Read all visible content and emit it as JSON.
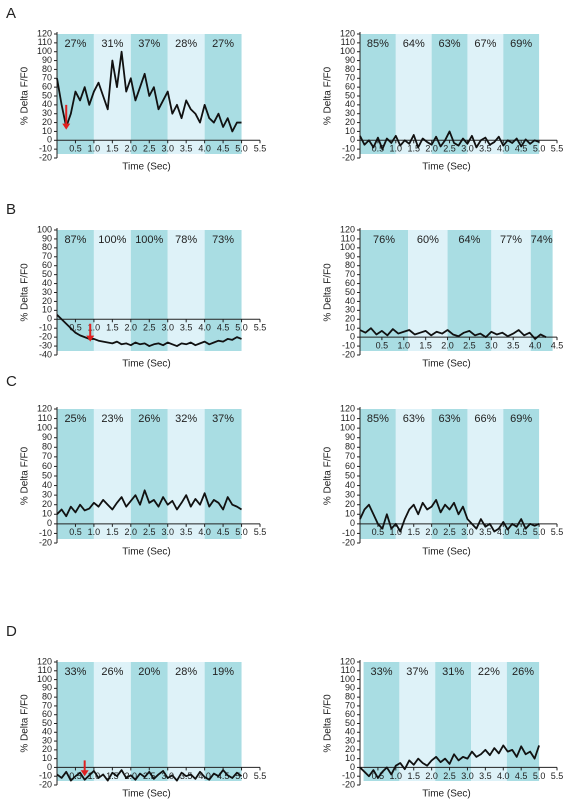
{
  "panels": [
    "A",
    "B",
    "C",
    "D"
  ],
  "chart_data": [
    {
      "type": "line",
      "xlabel": "Time (Sec)",
      "ylabel": "% Delta F/F0",
      "color": "#111111",
      "band_colors": [
        "#a9dde3",
        "#def2f8"
      ],
      "band_edges": [
        0,
        1,
        2,
        3,
        4,
        5
      ],
      "band_labels": [
        "27%",
        "31%",
        "37%",
        "28%",
        "27%"
      ],
      "xlim": [
        0,
        5.5
      ],
      "ylim": [
        -20,
        120
      ],
      "xticks": [
        0.5,
        {
          "value": 1,
          "label": "1.0"
        },
        1.5,
        {
          "value": 2,
          "label": "2.0"
        },
        2.5,
        {
          "value": 3,
          "label": "3.0"
        },
        3.5,
        {
          "value": 4,
          "label": "4.0"
        },
        4.5,
        {
          "value": 5,
          "label": "5.0"
        },
        5.5
      ],
      "yticks": [
        -20,
        -10,
        0,
        10,
        20,
        30,
        40,
        50,
        60,
        70,
        80,
        90,
        100,
        110,
        120
      ],
      "arrow": {
        "x": 0.25,
        "from": 40,
        "to": 12,
        "color": "#e02020"
      },
      "x": [
        0,
        0.125,
        0.25,
        0.375,
        0.5,
        0.625,
        0.75,
        0.875,
        1,
        1.125,
        1.25,
        1.375,
        1.5,
        1.625,
        1.75,
        1.875,
        2,
        2.125,
        2.25,
        2.375,
        2.5,
        2.625,
        2.75,
        2.875,
        3,
        3.125,
        3.25,
        3.375,
        3.5,
        3.625,
        3.75,
        3.875,
        4,
        4.125,
        4.25,
        4.375,
        4.5,
        4.625,
        4.75,
        4.875,
        5
      ],
      "values": [
        70,
        40,
        15,
        30,
        55,
        45,
        60,
        40,
        55,
        65,
        50,
        35,
        90,
        60,
        100,
        55,
        70,
        45,
        60,
        75,
        50,
        60,
        35,
        45,
        55,
        30,
        40,
        25,
        45,
        35,
        30,
        20,
        40,
        25,
        20,
        30,
        15,
        25,
        10,
        20,
        20
      ]
    },
    {
      "type": "line",
      "xlabel": "Time (Sec)",
      "ylabel": "% Delta F/F0",
      "color": "#111111",
      "band_colors": [
        "#a9dde3",
        "#def2f8"
      ],
      "band_edges": [
        0,
        1,
        2,
        3,
        4,
        5
      ],
      "band_labels": [
        "85%",
        "64%",
        "63%",
        "67%",
        "69%"
      ],
      "xlim": [
        0,
        5.5
      ],
      "ylim": [
        -20,
        120
      ],
      "xticks": [
        0.5,
        {
          "value": 1,
          "label": "1.0"
        },
        1.5,
        {
          "value": 2,
          "label": "2.0"
        },
        2.5,
        {
          "value": 3,
          "label": "3.0"
        },
        3.5,
        {
          "value": 4,
          "label": "4.0"
        },
        4.5,
        {
          "value": 5,
          "label": "5.0"
        },
        5.5
      ],
      "yticks": [
        -20,
        -10,
        0,
        10,
        20,
        30,
        40,
        50,
        60,
        70,
        80,
        90,
        100,
        110,
        120
      ],
      "x": [
        0,
        0.125,
        0.25,
        0.375,
        0.5,
        0.625,
        0.75,
        0.875,
        1,
        1.125,
        1.25,
        1.375,
        1.5,
        1.625,
        1.75,
        1.875,
        2,
        2.125,
        2.25,
        2.375,
        2.5,
        2.625,
        2.75,
        2.875,
        3,
        3.125,
        3.25,
        3.375,
        3.5,
        3.625,
        3.75,
        3.875,
        4,
        4.125,
        4.25,
        4.375,
        4.5,
        4.625,
        4.75,
        4.875,
        5
      ],
      "values": [
        5,
        -5,
        0,
        -8,
        3,
        -10,
        2,
        -3,
        5,
        -6,
        0,
        -4,
        6,
        -8,
        2,
        -2,
        -5,
        4,
        -7,
        0,
        10,
        -3,
        -6,
        2,
        -4,
        5,
        -8,
        0,
        3,
        -5,
        -2,
        4,
        -6,
        0,
        -3,
        2,
        -7,
        1,
        -4,
        0,
        -2
      ]
    },
    {
      "type": "line",
      "xlabel": "Time (Sec)",
      "ylabel": "% Delta F/F0",
      "color": "#111111",
      "band_colors": [
        "#a9dde3",
        "#def2f8"
      ],
      "band_edges": [
        0,
        1,
        2,
        3,
        4,
        5
      ],
      "band_labels": [
        "87%",
        "100%",
        "100%",
        "78%",
        "73%"
      ],
      "xlim": [
        0,
        5.5
      ],
      "ylim": [
        -40,
        100
      ],
      "xticks": [
        0.5,
        {
          "value": 1,
          "label": "1.0"
        },
        1.5,
        {
          "value": 2,
          "label": "2.0"
        },
        2.5,
        {
          "value": 3,
          "label": "3.0"
        },
        3.5,
        {
          "value": 4,
          "label": "4.0"
        },
        4.5,
        {
          "value": 5,
          "label": "5.0"
        },
        5.5
      ],
      "yticks": [
        -40,
        -30,
        -20,
        -10,
        0,
        10,
        20,
        30,
        40,
        50,
        60,
        70,
        80,
        90,
        100
      ],
      "arrow": {
        "x": 0.9,
        "from": -5,
        "to": -25,
        "color": "#e02020"
      },
      "x": [
        0,
        0.125,
        0.25,
        0.375,
        0.5,
        0.625,
        0.75,
        0.875,
        1,
        1.125,
        1.25,
        1.375,
        1.5,
        1.625,
        1.75,
        1.875,
        2,
        2.125,
        2.25,
        2.375,
        2.5,
        2.625,
        2.75,
        2.875,
        3,
        3.125,
        3.25,
        3.375,
        3.5,
        3.625,
        3.75,
        3.875,
        4,
        4.125,
        4.25,
        4.375,
        4.5,
        4.625,
        4.75,
        4.875,
        5
      ],
      "values": [
        5,
        0,
        -5,
        -10,
        -15,
        -18,
        -20,
        -22,
        -22,
        -24,
        -25,
        -26,
        -27,
        -25,
        -28,
        -27,
        -29,
        -26,
        -28,
        -27,
        -30,
        -28,
        -27,
        -29,
        -26,
        -28,
        -30,
        -27,
        -28,
        -26,
        -29,
        -27,
        -25,
        -28,
        -26,
        -24,
        -25,
        -22,
        -23,
        -20,
        -22
      ]
    },
    {
      "type": "line",
      "xlabel": "Time (Sec)",
      "ylabel": "% Delta F/F0",
      "color": "#111111",
      "band_colors": [
        "#a9dde3",
        "#def2f8"
      ],
      "band_edges": [
        0,
        1.1,
        2,
        3,
        3.9,
        4.4
      ],
      "band_labels": [
        "76%",
        "60%",
        "64%",
        "77%",
        "74%"
      ],
      "xlim": [
        0,
        4.5
      ],
      "ylim": [
        -20,
        120
      ],
      "xticks": [
        0.5,
        {
          "value": 1,
          "label": "1.0"
        },
        1.5,
        {
          "value": 2,
          "label": "2.0"
        },
        2.5,
        {
          "value": 3,
          "label": "3.0"
        },
        3.5,
        {
          "value": 4,
          "label": "4.0"
        },
        4.5
      ],
      "yticks": [
        -20,
        -10,
        0,
        10,
        20,
        30,
        40,
        50,
        60,
        70,
        80,
        90,
        100,
        110,
        120
      ],
      "x": [
        0,
        0.125,
        0.25,
        0.375,
        0.5,
        0.625,
        0.75,
        0.875,
        1,
        1.125,
        1.25,
        1.375,
        1.5,
        1.625,
        1.75,
        1.875,
        2,
        2.125,
        2.25,
        2.375,
        2.5,
        2.625,
        2.75,
        2.875,
        3,
        3.125,
        3.25,
        3.375,
        3.5,
        3.625,
        3.75,
        3.875,
        4,
        4.125,
        4.25
      ],
      "values": [
        8,
        5,
        10,
        3,
        7,
        2,
        9,
        4,
        6,
        8,
        3,
        5,
        7,
        2,
        6,
        4,
        8,
        3,
        1,
        5,
        7,
        2,
        4,
        0,
        6,
        3,
        5,
        1,
        4,
        8,
        2,
        5,
        -2,
        3,
        0
      ]
    },
    {
      "type": "line",
      "xlabel": "Time (Sec)",
      "ylabel": "% Delta F/F0",
      "color": "#111111",
      "band_colors": [
        "#a9dde3",
        "#def2f8"
      ],
      "band_edges": [
        0,
        1,
        2,
        3,
        4,
        5
      ],
      "band_labels": [
        "25%",
        "23%",
        "26%",
        "32%",
        "37%"
      ],
      "xlim": [
        0,
        5.5
      ],
      "ylim": [
        -20,
        120
      ],
      "xticks": [
        0.5,
        {
          "value": 1,
          "label": "1.0"
        },
        1.5,
        {
          "value": 2,
          "label": "2.0"
        },
        2.5,
        {
          "value": 3,
          "label": "3.0"
        },
        3.5,
        {
          "value": 4,
          "label": "4.0"
        },
        4.5,
        {
          "value": 5,
          "label": "5.0"
        },
        5.5
      ],
      "yticks": [
        -20,
        -10,
        0,
        10,
        20,
        30,
        40,
        50,
        60,
        70,
        80,
        90,
        100,
        110,
        120
      ],
      "x": [
        0,
        0.125,
        0.25,
        0.375,
        0.5,
        0.625,
        0.75,
        0.875,
        1,
        1.125,
        1.25,
        1.375,
        1.5,
        1.625,
        1.75,
        1.875,
        2,
        2.125,
        2.25,
        2.375,
        2.5,
        2.625,
        2.75,
        2.875,
        3,
        3.125,
        3.25,
        3.375,
        3.5,
        3.625,
        3.75,
        3.875,
        4,
        4.125,
        4.25,
        4.375,
        4.5,
        4.625,
        4.75,
        4.875,
        5
      ],
      "values": [
        10,
        15,
        8,
        18,
        12,
        20,
        14,
        16,
        22,
        18,
        25,
        20,
        15,
        22,
        28,
        18,
        24,
        30,
        20,
        35,
        22,
        25,
        18,
        28,
        20,
        24,
        15,
        22,
        30,
        18,
        26,
        20,
        32,
        18,
        25,
        22,
        15,
        28,
        20,
        18,
        15
      ]
    },
    {
      "type": "line",
      "xlabel": "Time (Sec)",
      "ylabel": "% Delta F/F0",
      "color": "#111111",
      "band_colors": [
        "#a9dde3",
        "#def2f8"
      ],
      "band_edges": [
        0,
        1,
        2,
        3,
        4,
        5
      ],
      "band_labels": [
        "85%",
        "63%",
        "63%",
        "66%",
        "69%"
      ],
      "xlim": [
        0,
        5.5
      ],
      "ylim": [
        -20,
        120
      ],
      "xticks": [
        0.5,
        {
          "value": 1,
          "label": "1.0"
        },
        1.5,
        {
          "value": 2,
          "label": "2.0"
        },
        2.5,
        {
          "value": 3,
          "label": "3.0"
        },
        3.5,
        {
          "value": 4,
          "label": "4.0"
        },
        4.5,
        {
          "value": 5,
          "label": "5.0"
        },
        5.5
      ],
      "yticks": [
        -20,
        -10,
        0,
        10,
        20,
        30,
        40,
        50,
        60,
        70,
        80,
        90,
        100,
        110,
        120
      ],
      "x": [
        0,
        0.125,
        0.25,
        0.375,
        0.5,
        0.625,
        0.75,
        0.875,
        1,
        1.125,
        1.25,
        1.375,
        1.5,
        1.625,
        1.75,
        1.875,
        2,
        2.125,
        2.25,
        2.375,
        2.5,
        2.625,
        2.75,
        2.875,
        3,
        3.125,
        3.25,
        3.375,
        3.5,
        3.625,
        3.75,
        3.875,
        4,
        4.125,
        4.25,
        4.375,
        4.5,
        4.625,
        4.75,
        4.875,
        5
      ],
      "values": [
        5,
        15,
        20,
        10,
        0,
        -5,
        10,
        -5,
        0,
        -8,
        5,
        15,
        20,
        10,
        22,
        15,
        18,
        25,
        12,
        20,
        15,
        22,
        10,
        18,
        5,
        0,
        -5,
        5,
        -3,
        0,
        -8,
        -5,
        2,
        -6,
        0,
        -3,
        5,
        -5,
        0,
        -2,
        0
      ]
    },
    {
      "type": "line",
      "xlabel": "Time (Sec)",
      "ylabel": "% Delta F/F0",
      "color": "#111111",
      "band_colors": [
        "#a9dde3",
        "#def2f8"
      ],
      "band_edges": [
        0,
        1,
        2,
        3,
        4,
        5
      ],
      "band_labels": [
        "33%",
        "26%",
        "20%",
        "28%",
        "19%"
      ],
      "xlim": [
        0,
        5.5
      ],
      "ylim": [
        -20,
        120
      ],
      "xticks": [
        0.5,
        {
          "value": 1,
          "label": "1.0"
        },
        1.5,
        {
          "value": 2,
          "label": "2.0"
        },
        2.5,
        {
          "value": 3,
          "label": "3.0"
        },
        3.5,
        {
          "value": 4,
          "label": "4.0"
        },
        4.5,
        {
          "value": 5,
          "label": "5.0"
        },
        5.5
      ],
      "yticks": [
        -20,
        -10,
        0,
        10,
        20,
        30,
        40,
        50,
        60,
        70,
        80,
        90,
        100,
        110,
        120
      ],
      "arrow": {
        "x": 0.75,
        "from": 8,
        "to": -10,
        "color": "#e02020"
      },
      "x": [
        0,
        0.125,
        0.25,
        0.375,
        0.5,
        0.625,
        0.75,
        0.875,
        1,
        1.125,
        1.25,
        1.375,
        1.5,
        1.625,
        1.75,
        1.875,
        2,
        2.125,
        2.25,
        2.375,
        2.5,
        2.625,
        2.75,
        2.875,
        3,
        3.125,
        3.25,
        3.375,
        3.5,
        3.625,
        3.75,
        3.875,
        4,
        4.125,
        4.25,
        4.375,
        4.5,
        4.625,
        4.75,
        4.875,
        5
      ],
      "values": [
        -8,
        -12,
        -5,
        -15,
        -10,
        -6,
        -14,
        -9,
        -4,
        -12,
        -8,
        -15,
        -6,
        -10,
        -3,
        -12,
        -9,
        -14,
        -7,
        -11,
        -5,
        -13,
        -8,
        -4,
        -12,
        -9,
        -15,
        -6,
        -10,
        -8,
        -13,
        -5,
        -11,
        -14,
        -7,
        -10,
        -3,
        -9,
        -12,
        -6,
        -10
      ]
    },
    {
      "type": "line",
      "xlabel": "Time (Sec)",
      "ylabel": "% Delta F/F0",
      "color": "#111111",
      "band_colors": [
        "#a9dde3",
        "#def2f8"
      ],
      "band_edges": [
        0.1,
        1.1,
        2.1,
        3.1,
        4.1,
        5
      ],
      "band_labels": [
        "33%",
        "37%",
        "31%",
        "22%",
        "26%"
      ],
      "xlim": [
        0,
        5.5
      ],
      "ylim": [
        -20,
        120
      ],
      "xticks": [
        0.5,
        {
          "value": 1,
          "label": "1.0"
        },
        1.5,
        {
          "value": 2,
          "label": "2.0"
        },
        2.5,
        {
          "value": 3,
          "label": "3.0"
        },
        3.5,
        {
          "value": 4,
          "label": "4.0"
        },
        4.5,
        {
          "value": 5,
          "label": "5.0"
        },
        5.5
      ],
      "yticks": [
        -20,
        -10,
        0,
        10,
        20,
        30,
        40,
        50,
        60,
        70,
        80,
        90,
        100,
        110,
        120
      ],
      "x": [
        0,
        0.125,
        0.25,
        0.375,
        0.5,
        0.625,
        0.75,
        0.875,
        1,
        1.125,
        1.25,
        1.375,
        1.5,
        1.625,
        1.75,
        1.875,
        2,
        2.125,
        2.25,
        2.375,
        2.5,
        2.625,
        2.75,
        2.875,
        3,
        3.125,
        3.25,
        3.375,
        3.5,
        3.625,
        3.75,
        3.875,
        4,
        4.125,
        4.25,
        4.375,
        4.5,
        4.625,
        4.75,
        4.875,
        5
      ],
      "values": [
        0,
        -5,
        -10,
        -3,
        -12,
        -5,
        0,
        -8,
        2,
        5,
        -2,
        8,
        3,
        10,
        5,
        2,
        8,
        12,
        6,
        10,
        4,
        15,
        8,
        12,
        10,
        18,
        12,
        15,
        20,
        14,
        22,
        16,
        25,
        18,
        20,
        12,
        24,
        15,
        18,
        10,
        25
      ]
    }
  ]
}
